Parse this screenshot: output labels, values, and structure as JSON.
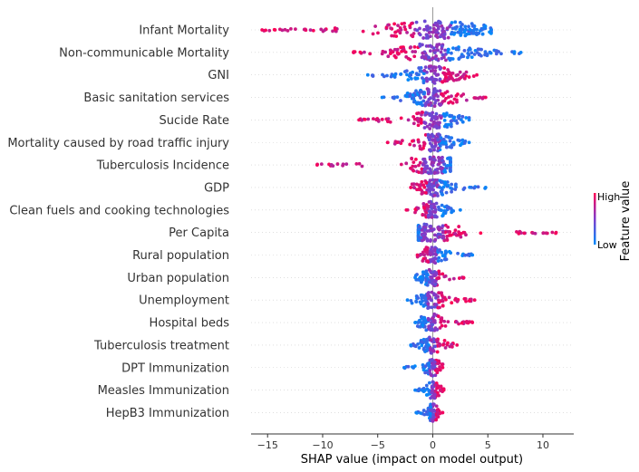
{
  "chart_data": {
    "type": "scatter",
    "subtype": "shap-beeswarm",
    "xlabel": "SHAP value (impact on model output)",
    "xlim": [
      -16.5,
      12.8
    ],
    "xticks": [
      -15,
      -10,
      -5,
      0,
      5,
      10
    ],
    "colorbar": {
      "label": "Feature value",
      "high_label": "High",
      "low_label": "Low",
      "high_color": "#ff0052",
      "low_color": "#008bfb",
      "placement": "right"
    },
    "grid": false,
    "features": [
      {
        "name": "Infant Mortality",
        "min": -15.5,
        "max": 5.3,
        "low_side": "positive"
      },
      {
        "name": "Non-communicable Mortality",
        "min": -7.2,
        "max": 8.0,
        "low_side": "positive"
      },
      {
        "name": "GNI",
        "min": -5.9,
        "max": 4.0,
        "low_side": "negative"
      },
      {
        "name": "Basic sanitation services",
        "min": -4.6,
        "max": 4.8,
        "low_side": "negative"
      },
      {
        "name": "Sucide Rate",
        "min": -6.7,
        "max": 3.3,
        "low_side": "positive"
      },
      {
        "name": "Mortality caused by road traffic injury",
        "min": -4.1,
        "max": 3.3,
        "low_side": "positive"
      },
      {
        "name": "Tuberculosis Incidence",
        "min": -10.5,
        "max": 1.6,
        "low_side": "positive"
      },
      {
        "name": "GDP",
        "min": -2.0,
        "max": 4.8,
        "low_side": "positive"
      },
      {
        "name": "Clean fuels and cooking technologies",
        "min": -2.4,
        "max": 2.5,
        "low_side": "positive"
      },
      {
        "name": "Per Capita",
        "min": -1.3,
        "max": 11.2,
        "low_side": "negative"
      },
      {
        "name": "Rural population",
        "min": -1.4,
        "max": 3.6,
        "low_side": "positive"
      },
      {
        "name": "Urban population",
        "min": -1.6,
        "max": 2.8,
        "low_side": "negative"
      },
      {
        "name": "Unemployment",
        "min": -2.3,
        "max": 3.8,
        "low_side": "negative"
      },
      {
        "name": "Hospital beds",
        "min": -1.6,
        "max": 3.6,
        "low_side": "negative"
      },
      {
        "name": "Tuberculosis treatment",
        "min": -2.0,
        "max": 2.2,
        "low_side": "negative"
      },
      {
        "name": "DPT Immunization",
        "min": -2.6,
        "max": 0.9,
        "low_side": "negative"
      },
      {
        "name": "Measles Immunization",
        "min": -1.6,
        "max": 1.0,
        "low_side": "negative"
      },
      {
        "name": "HepB3 Immunization",
        "min": -1.5,
        "max": 0.9,
        "low_side": "negative"
      }
    ]
  }
}
